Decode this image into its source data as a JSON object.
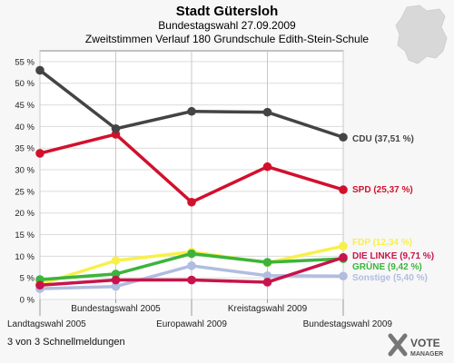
{
  "header": {
    "title": "Stadt Gütersloh",
    "subtitle1": "Bundestagswahl 27.09.2009",
    "subtitle2": "Zweitstimmen Verlauf 180 Grundschule Edith-Stein-Schule"
  },
  "footer": {
    "pager": "3 von 3 Schnellmeldungen"
  },
  "logo": {
    "line1": "VOTE",
    "line2": "MANAGER"
  },
  "chart_data": {
    "type": "line",
    "title": "Stadt Gütersloh",
    "subtitle": "Bundestagswahl 27.09.2009 / Zweitstimmen Verlauf 180 Grundschule Edith-Stein-Schule",
    "xlabel": "",
    "ylabel": "",
    "categories": [
      "Landtagswahl 2005",
      "Bundestagswahl 2005",
      "Europawahl 2009",
      "Kreistagswahl 2009",
      "Bundestagswahl 2009"
    ],
    "ylim": [
      0,
      57.5
    ],
    "yticks": [
      0,
      5,
      10,
      15,
      20,
      25,
      30,
      35,
      40,
      45,
      50,
      55
    ],
    "ytick_labels": [
      "0 %",
      "5 %",
      "10 %",
      "15 %",
      "20 %",
      "25 %",
      "30 %",
      "35 %",
      "40 %",
      "45 %",
      "50 %",
      "55 %"
    ],
    "grid": true,
    "series": [
      {
        "name": "Sonstige",
        "label": "Sonstige (5,40 %)",
        "color": "#b0bde0",
        "values": [
          2.5,
          3.0,
          7.8,
          5.5,
          5.4
        ]
      },
      {
        "name": "FDP",
        "label": "FDP (12,34 %)",
        "color": "#f8f04a",
        "values": [
          3.5,
          9.0,
          11.0,
          8.5,
          12.34
        ]
      },
      {
        "name": "GRÜNE",
        "label": "GRÜNE (9,42 %)",
        "color": "#3cb43c",
        "values": [
          4.6,
          5.9,
          10.6,
          8.6,
          9.42
        ]
      },
      {
        "name": "DIE LINKE",
        "label": "DIE LINKE (9,71 %)",
        "color": "#c8144b",
        "values": [
          3.3,
          4.5,
          4.5,
          4.0,
          9.71
        ]
      },
      {
        "name": "SPD",
        "label": "SPD (25,37 %)",
        "color": "#d2102c",
        "values": [
          33.8,
          38.2,
          22.5,
          30.7,
          25.37
        ]
      },
      {
        "name": "CDU",
        "label": "CDU (37,51 %)",
        "color": "#444444",
        "values": [
          53.0,
          39.5,
          43.5,
          43.3,
          37.51
        ]
      }
    ]
  }
}
